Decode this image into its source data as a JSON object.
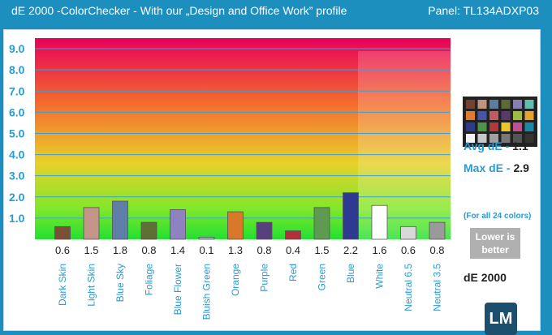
{
  "header": {
    "title": "dE 2000 -ColorChecker - With our „Design and Office Work” profile",
    "panel": "Panel: TL134ADXP03"
  },
  "stats": {
    "avg_label": "Avg dE -",
    "avg_value": "1.1",
    "max_label": "Max dE -",
    "max_value": "2.9",
    "note": "(For all 24 colors)",
    "lower_line1": "Lower is",
    "lower_line2": "better",
    "unit": "dE 2000"
  },
  "logo_text": "LM",
  "checker_colors": [
    "#734233",
    "#c1937f",
    "#5b7ba0",
    "#5a6b36",
    "#8a7fb3",
    "#5fbfb0",
    "#df7b2e",
    "#4656a7",
    "#c35a61",
    "#5a3a6a",
    "#9ebd3f",
    "#e6a22c",
    "#2e3a8b",
    "#4b9448",
    "#b2383a",
    "#ecc72b",
    "#bd5290",
    "#1b88a8",
    "#f3f3f2",
    "#c8c8c8",
    "#a0a0a0",
    "#787878",
    "#555555",
    "#343434"
  ],
  "chart_data": {
    "type": "bar",
    "categories": [
      "Dark Skin",
      "Light Skin",
      "Blue Sky",
      "Foliage",
      "Blue Flower",
      "Bluish Green",
      "Orange",
      "Purple",
      "Red",
      "Green",
      "Blue",
      "White",
      "Neutral 6.5",
      "Neutral 3.5"
    ],
    "values": [
      0.6,
      1.5,
      1.8,
      0.8,
      1.4,
      0.1,
      1.3,
      0.8,
      0.4,
      1.5,
      2.2,
      1.6,
      0.6,
      0.8
    ],
    "value_labels": [
      "0.6",
      "1.5",
      "1.8",
      "0.8",
      "1.4",
      "0.1",
      "1.3",
      "0.8",
      "0.4",
      "1.5",
      "2.2",
      "1.6",
      "0.6",
      "0.8"
    ],
    "colors": [
      "#7a5038",
      "#c4968a",
      "#5f7fa8",
      "#5e7032",
      "#8f82c0",
      "#7fc9b4",
      "#d9772a",
      "#5a3f7e",
      "#b2303a",
      "#5e9a50",
      "#2e3a8f",
      "#ffffff",
      "#d8d8d8",
      "#9a9a9a"
    ],
    "yticks": [
      "1.0",
      "2.0",
      "3.0",
      "4.0",
      "5.0",
      "6.0",
      "7.0",
      "8.0",
      "9.0"
    ],
    "ylim": [
      0,
      9.5
    ]
  }
}
